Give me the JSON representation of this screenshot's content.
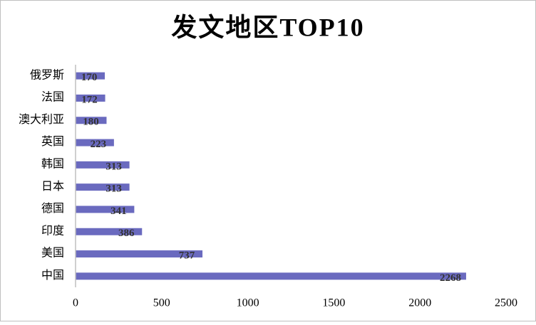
{
  "chart_data": {
    "type": "hbar",
    "title": "发文地区TOP10",
    "categories": [
      "俄罗斯",
      "法国",
      "澳大利亚",
      "英国",
      "韩国",
      "日本",
      "德国",
      "印度",
      "美国",
      "中国"
    ],
    "values": [
      170,
      172,
      180,
      223,
      313,
      313,
      341,
      386,
      737,
      2268
    ],
    "color": "#6a6abf",
    "xlim": [
      0,
      2500
    ],
    "xticks": [
      0,
      500,
      1000,
      1500,
      2000,
      2500
    ]
  }
}
